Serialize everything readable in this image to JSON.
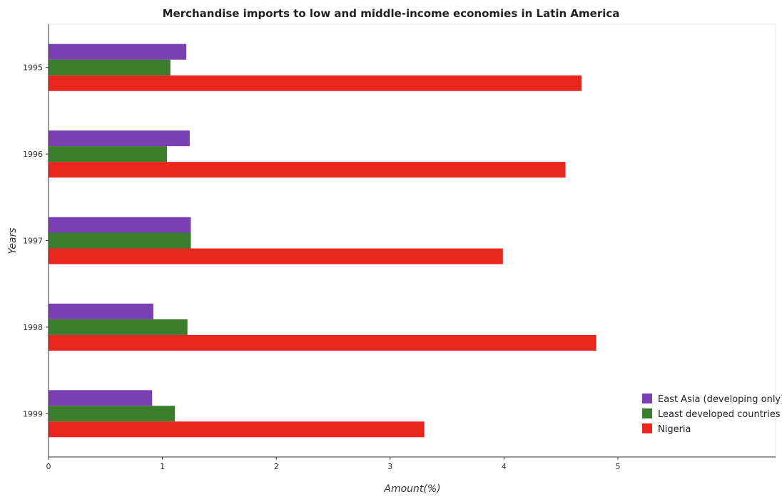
{
  "chart_data": {
    "type": "bar",
    "orientation": "horizontal",
    "title": "Merchandise imports to low and middle-income economies in Latin America",
    "xlabel": "Amount(%)",
    "ylabel": "Years",
    "categories": [
      "1995",
      "1996",
      "1997",
      "1998",
      "1999"
    ],
    "xlim": [
      0,
      5
    ],
    "xticks": [
      "0",
      "1",
      "2",
      "3",
      "4",
      "5"
    ],
    "grid": false,
    "legend_position": "bottom-right",
    "series": [
      {
        "name": "East Asia (developing only)",
        "color": "#7b3fb4",
        "values": [
          1.21,
          1.24,
          1.25,
          0.92,
          0.91
        ]
      },
      {
        "name": "Least developed countries",
        "color": "#3a7d2c",
        "values": [
          1.07,
          1.04,
          1.25,
          1.22,
          1.11
        ]
      },
      {
        "name": "Nigeria",
        "color": "#e8261f",
        "values": [
          4.68,
          4.54,
          3.99,
          4.81,
          3.3
        ]
      }
    ]
  }
}
